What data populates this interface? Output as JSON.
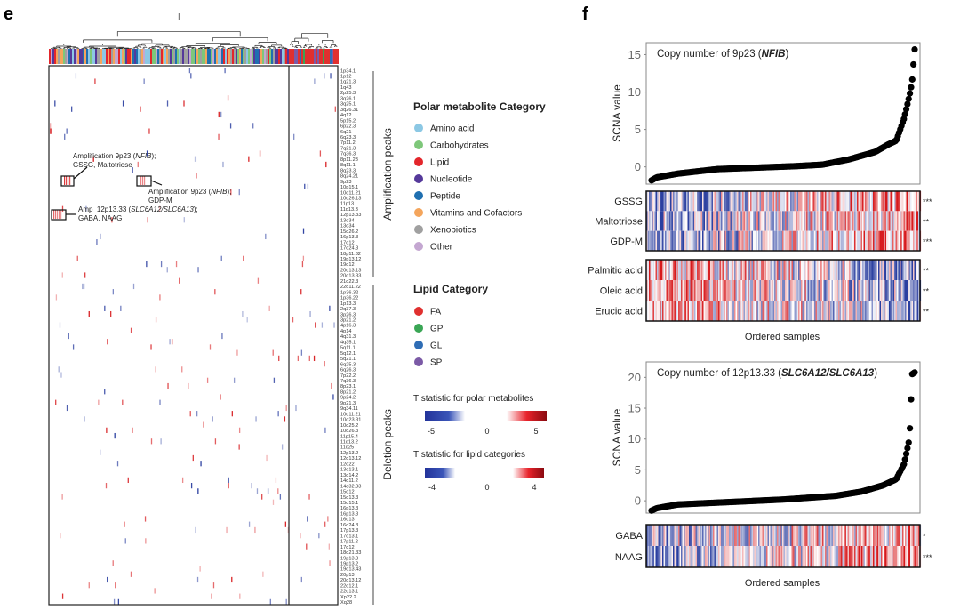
{
  "panel_e": {
    "label": "e",
    "group_labels": {
      "amplification": "Amplification peaks",
      "deletion": "Deletion peaks"
    },
    "amplification_peaks": [
      "1p34.1",
      "1p12",
      "1q21.3",
      "1q43",
      "2p25.3",
      "3q26.1",
      "3q25.1",
      "3q26.31",
      "4q12",
      "5p15.2",
      "6p22.3",
      "6q21",
      "6q23.3",
      "7p11.2",
      "7q21.3",
      "7q36.3",
      "8p11.23",
      "8q11.1",
      "8q23.3",
      "8q24.21",
      "9p23",
      "10p15.1",
      "10q11.21",
      "10q26.13",
      "11p13",
      "11q13.3",
      "12p13.33",
      "13q34",
      "13q34",
      "15q26.2",
      "16p13.3",
      "17q12",
      "17q24.3",
      "18p11.32",
      "19p13.12",
      "19q12",
      "20q13.13",
      "20q13.33",
      "21q22.3"
    ],
    "deletion_peaks": [
      "22q11.22",
      "1p36.32",
      "1p36.22",
      "1p13.3",
      "2q37.3",
      "3p26.3",
      "3p21.2",
      "4p16.3",
      "4p14",
      "4q31.3",
      "4q35.1",
      "5q11.1",
      "5q12.1",
      "5q21.1",
      "6q25.3",
      "6q26.3",
      "7p22.2",
      "7q36.3",
      "8p23.1",
      "8p21.2",
      "9p24.2",
      "9p21.3",
      "9q34.11",
      "10q11.21",
      "10q23.31",
      "10q25.2",
      "10q26.3",
      "11p15.4",
      "11q13.2",
      "11q25",
      "12p13.2",
      "12q13.12",
      "12q22",
      "13q13.1",
      "13q14.2",
      "14q11.2",
      "14q32.33",
      "15q12",
      "15q13.3",
      "15q15.1",
      "16p13.3",
      "16p13.3",
      "16q13",
      "16q24.3",
      "17p13.3",
      "17q13.1",
      "17p11.2",
      "17q12",
      "18q21.33",
      "19p13.3",
      "19p13.2",
      "19q13.43",
      "20p13",
      "20q13.12",
      "22q12.1",
      "22q13.1",
      "Xp22.2",
      "Xq28"
    ],
    "annotations": [
      {
        "lines": [
          [
            [
              "Amplification 9p23 (",
              false
            ],
            [
              "NFIB",
              true
            ],
            [
              ");",
              false
            ]
          ],
          [
            [
              "GSSG, Maltotriose",
              false
            ]
          ]
        ]
      },
      {
        "lines": [
          [
            [
              "Amplification 9p23 (",
              false
            ],
            [
              "NFIB",
              true
            ],
            [
              ");",
              false
            ]
          ],
          [
            [
              "GDP-M",
              false
            ]
          ]
        ]
      },
      {
        "lines": [
          [
            [
              "Amp_12p13.33 (",
              false
            ],
            [
              "SLC6A12/SLC6A13",
              true
            ],
            [
              ");",
              false
            ]
          ],
          [
            [
              "GABA, NAAG",
              false
            ]
          ]
        ]
      }
    ],
    "legend": {
      "polar_title": "Polar metabolite Category",
      "polar": [
        {
          "label": "Amino acid",
          "color": "#8cc8e4"
        },
        {
          "label": "Carbohydrates",
          "color": "#7ec77a"
        },
        {
          "label": "Lipid",
          "color": "#e3262b"
        },
        {
          "label": "Nucleotide",
          "color": "#55399a"
        },
        {
          "label": "Peptide",
          "color": "#1f6fb0"
        },
        {
          "label": "Vitamins and Cofactors",
          "color": "#f4a55c"
        },
        {
          "label": "Xenobiotics",
          "color": "#a0a0a0"
        },
        {
          "label": "Other",
          "color": "#c4a7d1"
        }
      ],
      "lipid_title": "Lipid Category",
      "lipid": [
        {
          "label": "FA",
          "color": "#e0302f"
        },
        {
          "label": "GP",
          "color": "#3aa655"
        },
        {
          "label": "GL",
          "color": "#2f6db5"
        },
        {
          "label": "SP",
          "color": "#7b5aa6"
        }
      ],
      "t_polar": {
        "title": "T statistic for polar metabolites",
        "min": "-5",
        "mid": "0",
        "max": "5"
      },
      "t_lipid": {
        "title": "T statistic for lipid categories",
        "min": "-4",
        "mid": "0",
        "max": "4"
      }
    },
    "colors": {
      "neg": "#2b3fa0",
      "pos": "#d7191c"
    }
  },
  "panel_f": {
    "label": "f",
    "ylabel": "SCNA value",
    "xlabel": "Ordered samples"
  },
  "chart_data": [
    {
      "type": "scatter",
      "title_prefix": "Copy number of 9p23 (",
      "title_gene": "NFIB",
      "title_suffix": ")",
      "ylabel": "SCNA value",
      "xlabel": "Ordered samples",
      "yticks": [
        "0",
        "5",
        "10",
        "15"
      ],
      "ylim": [
        -2.3,
        16.6
      ],
      "sorted_quantiles": [
        0,
        0.02,
        0.1,
        0.25,
        0.4,
        0.55,
        0.65,
        0.75,
        0.85,
        0.9,
        0.93,
        0.96,
        0.98,
        0.99,
        1.0
      ],
      "values": [
        -1.8,
        -1.4,
        -0.9,
        -0.3,
        -0.1,
        0.1,
        0.3,
        1.0,
        2.0,
        3.0,
        3.5,
        6.5,
        9.5,
        11.3,
        15.7
      ],
      "heatmaps": [
        {
          "rows": [
            {
              "name": "GSSG",
              "sig": "***",
              "trend": 0.6
            },
            {
              "name": "Maltotriose",
              "sig": "**",
              "trend": 0.5
            },
            {
              "name": "GDP-M",
              "sig": "***",
              "trend": 0.6
            }
          ]
        },
        {
          "rows": [
            {
              "name": "Palmitic acid",
              "sig": "**",
              "trend": -0.5
            },
            {
              "name": "Oleic acid",
              "sig": "**",
              "trend": -0.5
            },
            {
              "name": "Erucic acid",
              "sig": "**",
              "trend": -0.5
            }
          ]
        }
      ]
    },
    {
      "type": "scatter",
      "title_prefix": "Copy number of 12p13.33 (",
      "title_gene": "SLC6A12/SLC6A13",
      "title_suffix": ")",
      "ylabel": "SCNA value",
      "xlabel": "Ordered samples",
      "yticks": [
        "0",
        "5",
        "10",
        "15",
        "20"
      ],
      "ylim": [
        -2,
        22.5
      ],
      "sorted_quantiles": [
        0,
        0.02,
        0.1,
        0.3,
        0.5,
        0.7,
        0.8,
        0.88,
        0.93,
        0.96,
        0.98,
        0.985,
        0.99,
        1.0
      ],
      "values": [
        -1.6,
        -1.2,
        -0.6,
        -0.2,
        0.2,
        0.8,
        1.5,
        2.5,
        3.5,
        6,
        10,
        15,
        20.5,
        20.8
      ],
      "heatmaps": [
        {
          "rows": [
            {
              "name": "GABA",
              "sig": "*",
              "trend": 0.3
            },
            {
              "name": "NAAG",
              "sig": "***",
              "trend": 0.6
            }
          ]
        }
      ]
    }
  ]
}
